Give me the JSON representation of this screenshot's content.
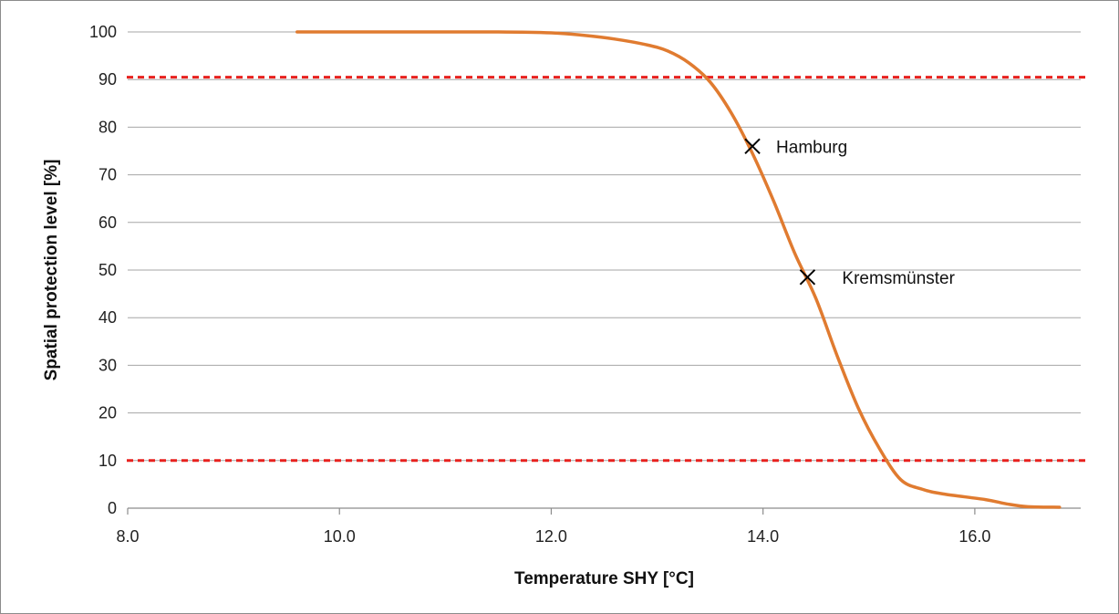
{
  "chart_data": {
    "type": "line",
    "xlabel": "Temperature SHY [°C]",
    "ylabel": "Spatial protection level [%]",
    "xlim": [
      8.0,
      17.0
    ],
    "ylim": [
      0,
      100
    ],
    "x_ticks": [
      8.0,
      10.0,
      12.0,
      14.0,
      16.0
    ],
    "x_tick_labels": [
      "8.0",
      "10.0",
      "12.0",
      "14.0",
      "16.0"
    ],
    "y_ticks": [
      0,
      10,
      20,
      30,
      40,
      50,
      60,
      70,
      80,
      90,
      100
    ],
    "y_tick_labels": [
      "0",
      "10",
      "20",
      "30",
      "40",
      "50",
      "60",
      "70",
      "80",
      "90",
      "100"
    ],
    "grid": "horizontal",
    "series": [
      {
        "color": "#E07B30",
        "x": [
          9.6,
          10.5,
          11.5,
          12.0,
          12.3,
          12.6,
          12.9,
          13.1,
          13.3,
          13.5,
          13.7,
          13.9,
          14.1,
          14.3,
          14.5,
          14.7,
          14.9,
          15.1,
          15.3,
          15.5,
          15.7,
          16.1,
          16.3,
          16.5,
          16.8
        ],
        "y": [
          100,
          100,
          100,
          99.8,
          99.3,
          98.5,
          97.3,
          96.0,
          93.5,
          89.5,
          83.0,
          74.5,
          64.5,
          53.5,
          44.0,
          32.0,
          21.0,
          12.5,
          6.0,
          4.0,
          3.0,
          1.8,
          0.9,
          0.3,
          0.2
        ]
      }
    ],
    "reference_lines": [
      {
        "y": 90.5,
        "color": "#E8211E",
        "style": "dashed"
      },
      {
        "y": 10,
        "color": "#E8211E",
        "style": "dashed"
      }
    ],
    "annotations": [
      {
        "label": "Hamburg",
        "x": 13.9,
        "y": 76,
        "marker": "x"
      },
      {
        "label": "Kremsmünster",
        "x": 14.42,
        "y": 48.5,
        "marker": "x"
      }
    ]
  }
}
